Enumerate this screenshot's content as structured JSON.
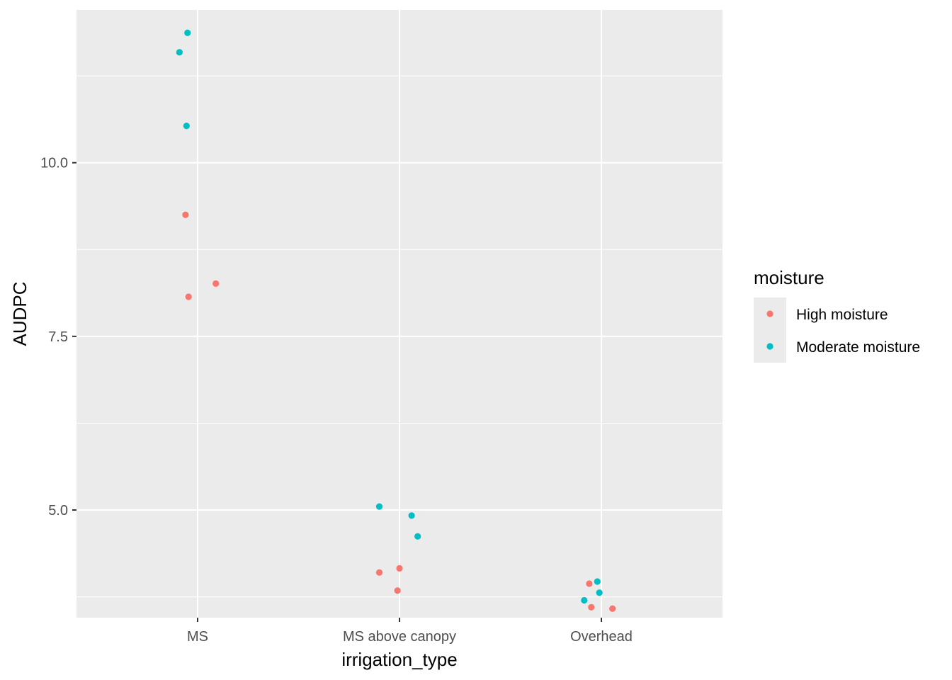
{
  "chart_data": {
    "type": "scatter",
    "xlabel": "irrigation_type",
    "ylabel": "AUDPC",
    "categories": [
      "MS",
      "MS above canopy",
      "Overhead"
    ],
    "ylim": [
      3.45,
      12.2
    ],
    "y_ticks": [
      5.0,
      7.5,
      10.0
    ],
    "y_tick_labels": [
      "5.0",
      "7.5",
      "10.0"
    ],
    "grid": true,
    "legend": {
      "title": "moisture",
      "position": "right",
      "entries": [
        {
          "name": "High moisture",
          "color": "#F8766D"
        },
        {
          "name": "Moderate moisture",
          "color": "#00BFC4"
        }
      ]
    },
    "series": [
      {
        "name": "High moisture",
        "color": "#F8766D",
        "points": [
          {
            "category": "MS",
            "jitter": -0.06,
            "y": 9.25
          },
          {
            "category": "MS",
            "jitter": 0.09,
            "y": 8.26
          },
          {
            "category": "MS",
            "jitter": -0.045,
            "y": 8.07
          },
          {
            "category": "MS above canopy",
            "jitter": -0.1,
            "y": 4.1
          },
          {
            "category": "MS above canopy",
            "jitter": 0.0,
            "y": 4.16
          },
          {
            "category": "MS above canopy",
            "jitter": -0.01,
            "y": 3.84
          },
          {
            "category": "Overhead",
            "jitter": -0.06,
            "y": 3.94
          },
          {
            "category": "Overhead",
            "jitter": -0.05,
            "y": 3.6
          },
          {
            "category": "Overhead",
            "jitter": 0.055,
            "y": 3.58
          }
        ]
      },
      {
        "name": "Moderate moisture",
        "color": "#00BFC4",
        "points": [
          {
            "category": "MS",
            "jitter": -0.05,
            "y": 11.87
          },
          {
            "category": "MS",
            "jitter": -0.09,
            "y": 11.59
          },
          {
            "category": "MS",
            "jitter": -0.055,
            "y": 10.53
          },
          {
            "category": "MS above canopy",
            "jitter": -0.1,
            "y": 5.05
          },
          {
            "category": "MS above canopy",
            "jitter": 0.06,
            "y": 4.92
          },
          {
            "category": "MS above canopy",
            "jitter": 0.09,
            "y": 4.62
          },
          {
            "category": "Overhead",
            "jitter": -0.02,
            "y": 3.97
          },
          {
            "category": "Overhead",
            "jitter": -0.01,
            "y": 3.81
          },
          {
            "category": "Overhead",
            "jitter": -0.085,
            "y": 3.7
          }
        ]
      }
    ]
  }
}
